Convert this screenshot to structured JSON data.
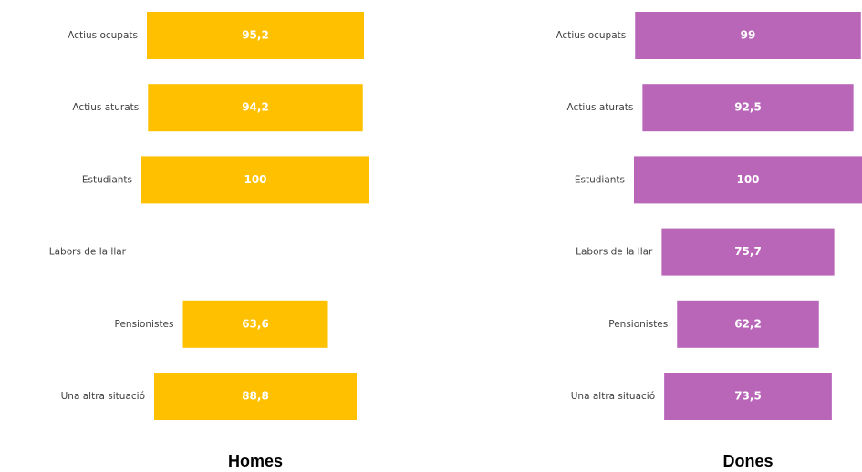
{
  "chart_data": [
    {
      "type": "bar",
      "title": "Homes",
      "color": "#ffc000",
      "categories": [
        "Actius ocupats",
        "Actius aturats",
        "Estudiants",
        "Labors de la llar",
        "Pensionistes",
        "Una altra situació"
      ],
      "values": [
        95.2,
        94.2,
        100,
        null,
        63.6,
        88.8
      ],
      "value_labels": [
        "95,2",
        "94,2",
        "100",
        null,
        "63,6",
        "88,8"
      ]
    },
    {
      "type": "bar",
      "title": "Dones",
      "color": "#b966b9",
      "categories": [
        "Actius ocupats",
        "Actius aturats",
        "Estudiants",
        "Labors de la llar",
        "Pensionistes",
        "Una altra situació"
      ],
      "values": [
        99,
        92.5,
        100,
        75.7,
        62.2,
        73.5
      ],
      "value_labels": [
        "99",
        "92,5",
        "100",
        "75,7",
        "62,2",
        "73,5"
      ]
    }
  ]
}
